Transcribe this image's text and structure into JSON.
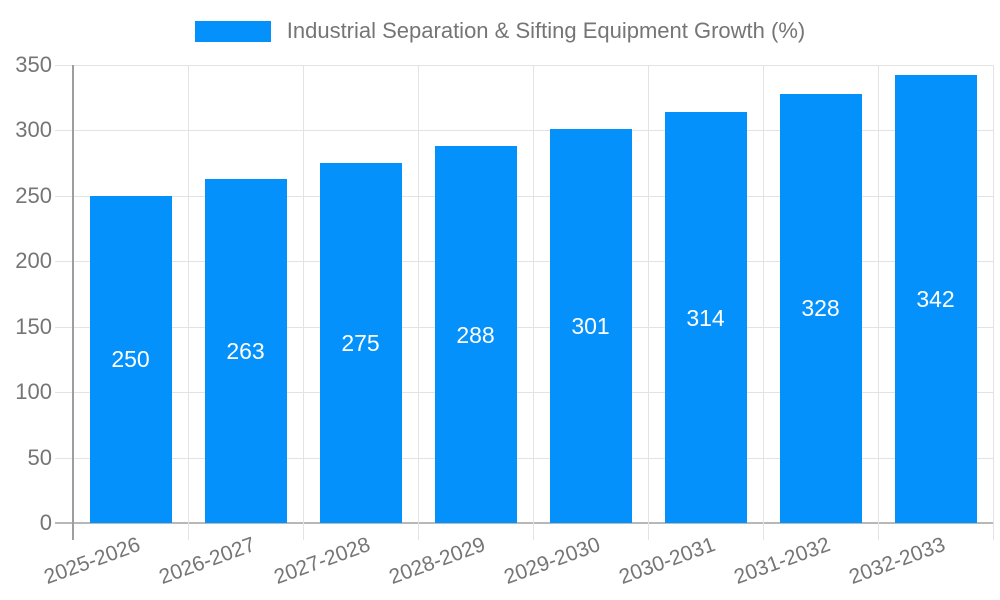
{
  "legend": {
    "series_label": "Industrial Separation & Sifting Equipment Growth (%)"
  },
  "colors": {
    "bar": "#0591fb",
    "grid": "#e3e3e3",
    "axis": "#9e9e9e",
    "baseline": "#b8b8b8",
    "text": "#757575",
    "bar_label": "#ffffff",
    "background": "#ffffff"
  },
  "chart_data": {
    "type": "bar",
    "title": "Industrial Separation & Sifting Equipment Growth (%)",
    "categories": [
      "2025-2026",
      "2026-2027",
      "2027-2028",
      "2028-2029",
      "2029-2030",
      "2030-2031",
      "2031-2032",
      "2032-2033"
    ],
    "values": [
      250,
      263,
      275,
      288,
      301,
      314,
      328,
      342
    ],
    "xlabel": "",
    "ylabel": "",
    "ylim": [
      0,
      350
    ],
    "ytick_step": 50,
    "ytick_labels": [
      "0",
      "50",
      "100",
      "150",
      "200",
      "250",
      "300",
      "350"
    ],
    "grid": true,
    "legend_position": "top",
    "bar_labels_shown": true,
    "x_label_rotation_deg": -20
  }
}
